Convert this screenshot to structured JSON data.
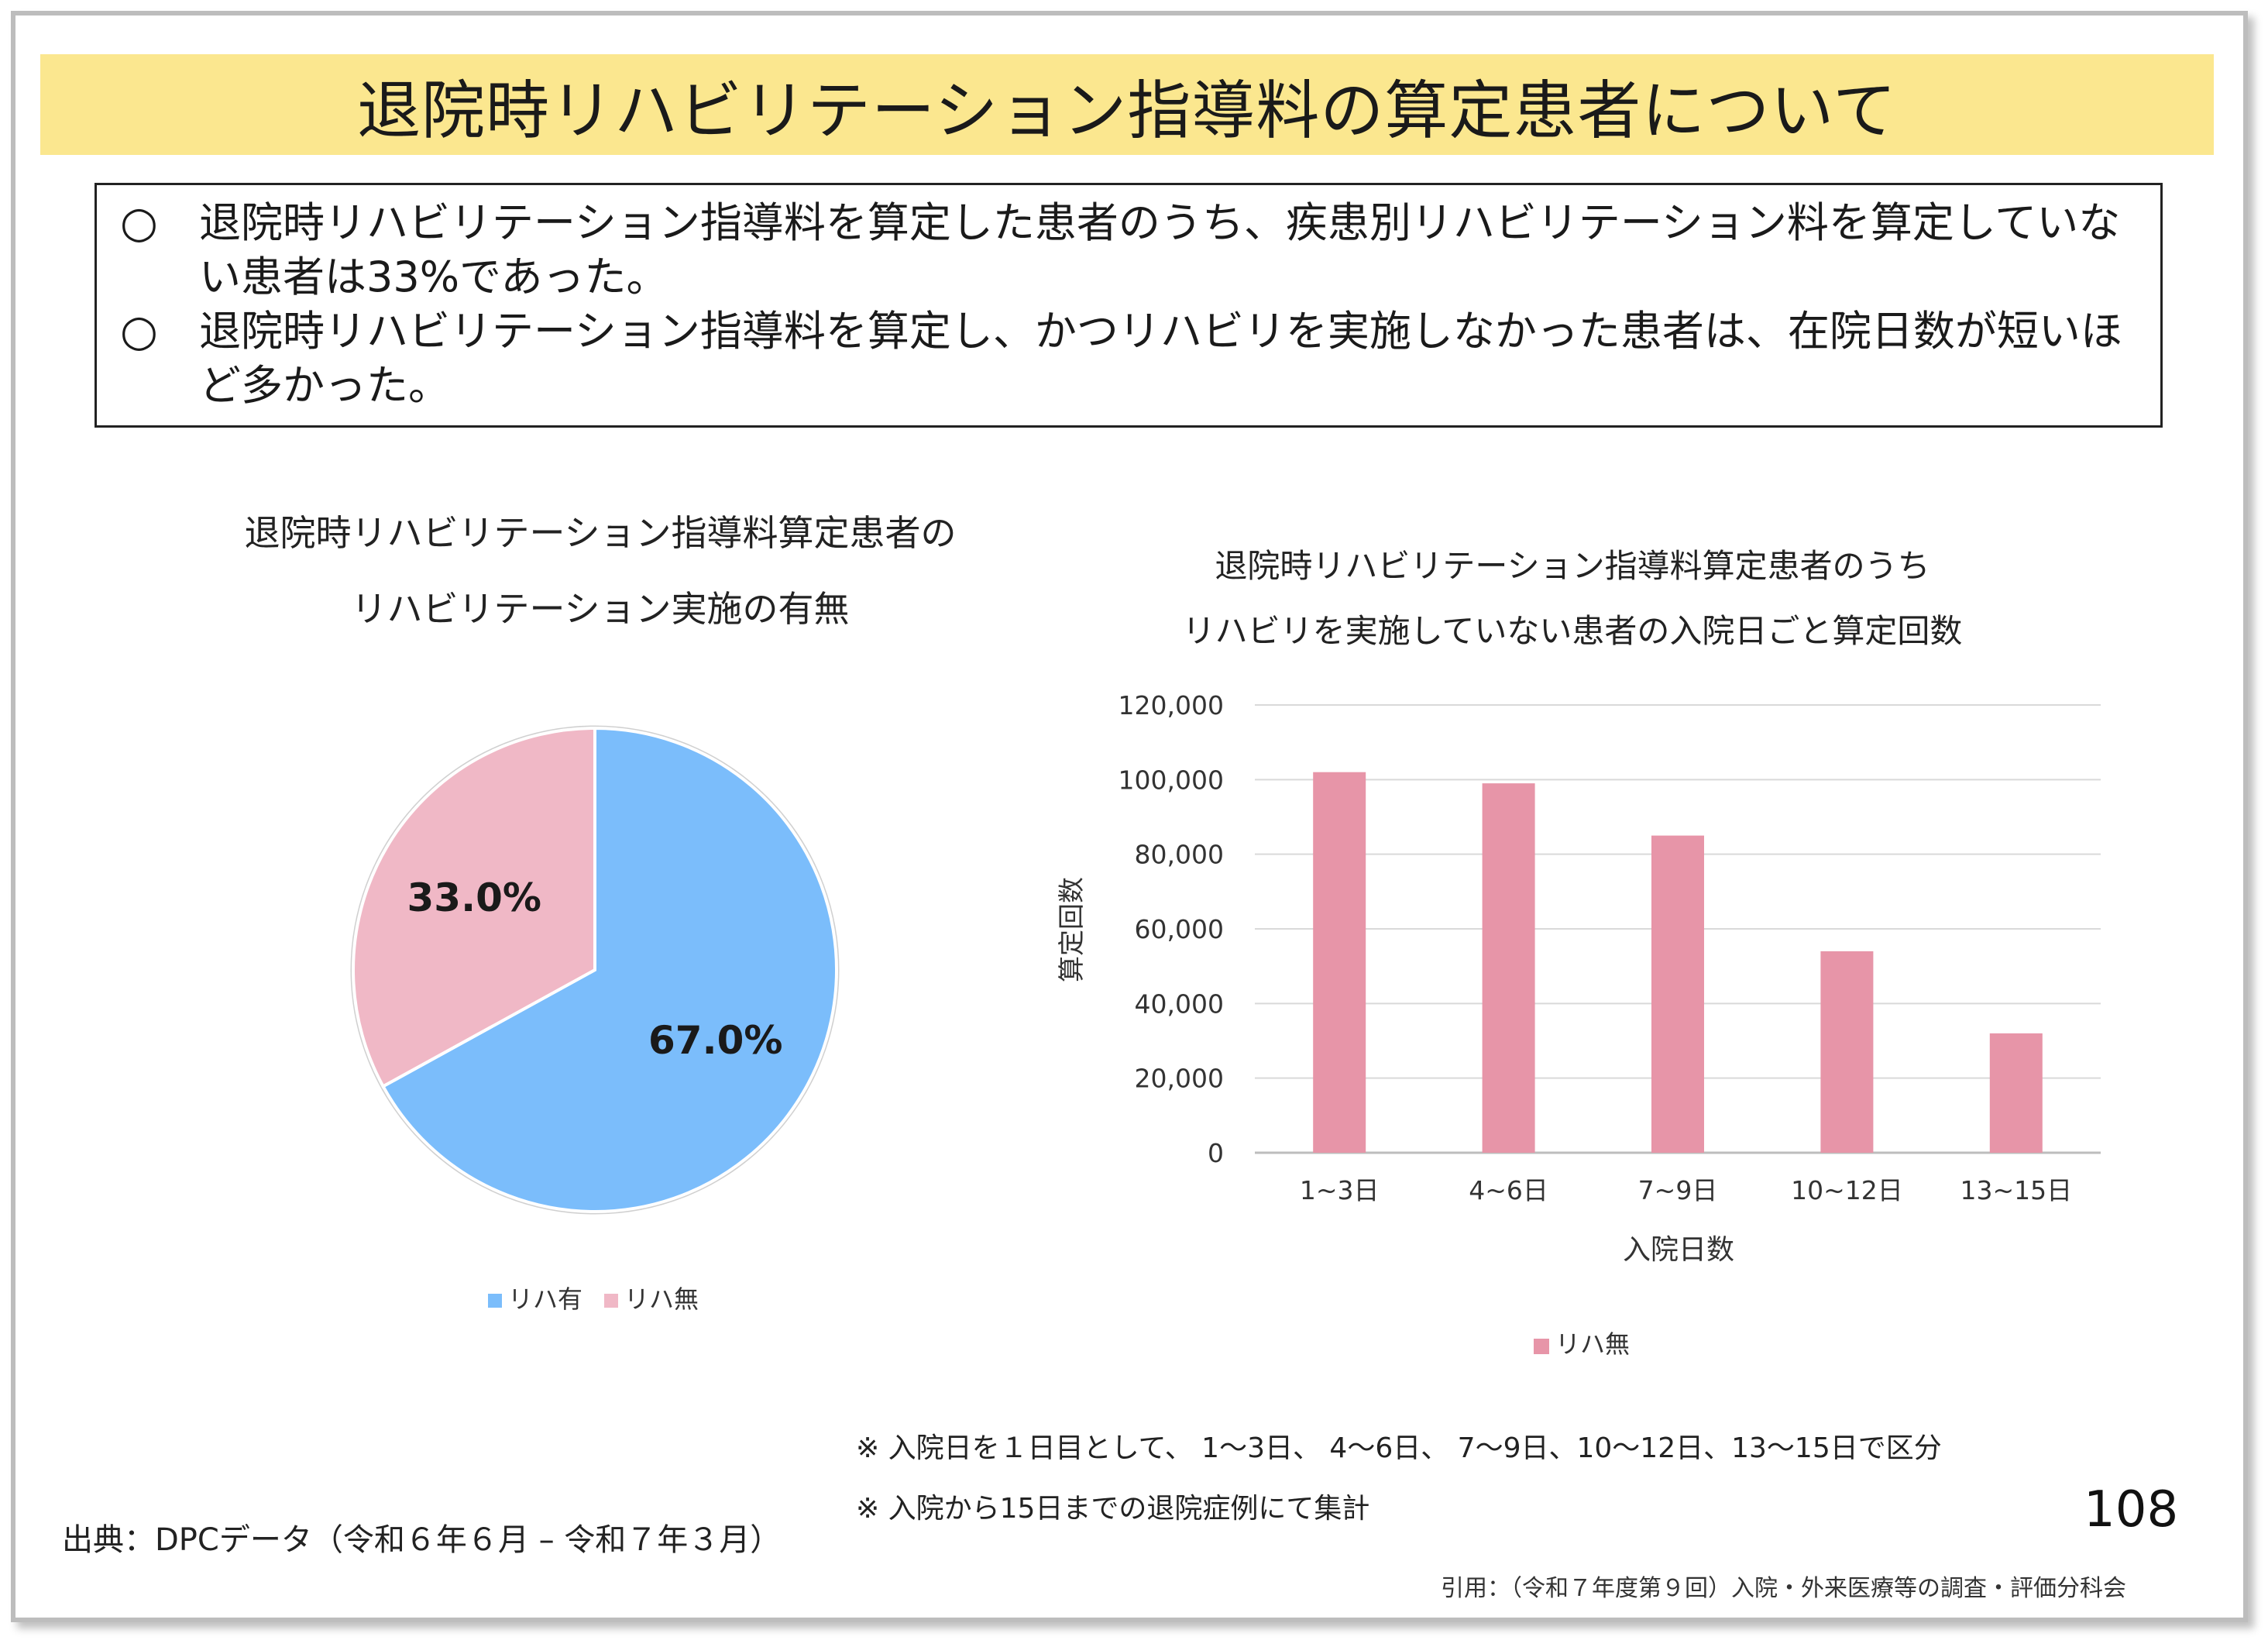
{
  "title": "退院時リハビリテーション指導料の算定患者について",
  "summary": [
    {
      "mark": "○",
      "text": "退院時リハビリテーション指導料を算定した患者のうち、疾患別リハビリテーション料を算定していない患者は33%であった。"
    },
    {
      "mark": "○",
      "text": "退院時リハビリテーション指導料を算定し、かつリハビリを実施しなかった患者は、在院日数が短いほど多かった。"
    }
  ],
  "pie_title": [
    "退院時リハビリテーション指導料算定患者の",
    "リハビリテーション実施の有無"
  ],
  "bar_title": [
    "退院時リハビリテーション指導料算定患者のうち",
    "リハビリを実施していない患者の入院日ごと算定回数"
  ],
  "chart_data": [
    {
      "type": "pie",
      "title": "退院時リハビリテーション指導料算定患者のリハビリテーション実施の有無",
      "slices": [
        {
          "label": "リハ有",
          "value": 67.0,
          "display": "67.0%",
          "color": "#7bbdfb"
        },
        {
          "label": "リハ無",
          "value": 33.0,
          "display": "33.0%",
          "color": "#f0b8c6"
        }
      ],
      "legend": "bottom"
    },
    {
      "type": "bar",
      "title": "退院時リハビリテーション指導料算定患者のうちリハビリを実施していない患者の入院日ごと算定回数",
      "categories": [
        "1~3日",
        "4~6日",
        "7~9日",
        "10~12日",
        "13~15日"
      ],
      "values": [
        102000,
        99000,
        85000,
        54000,
        32000
      ],
      "yticks": [
        "0",
        "20,000",
        "40,000",
        "60,000",
        "80,000",
        "100,000",
        "120,000"
      ],
      "ylim": [
        0,
        120000
      ],
      "xlabel": "入院日数",
      "ylabel": "算定回数",
      "legend_label": "リハ無",
      "color": "#e795a8",
      "grid": true,
      "legend": "bottom"
    }
  ],
  "notes": [
    "※ 入院日を１日目として、 1～3日、 4～6日、 7～9日、10～12日、13～15日で区分",
    "※ 入院から15日までの退院症例にて集計"
  ],
  "source": "出典：DPCデータ（令和６年６月 – 令和７年３月）",
  "page_number": "108",
  "citation": "引用：（令和７年度第９回）入院・外来医療等の調査・評価分科会"
}
